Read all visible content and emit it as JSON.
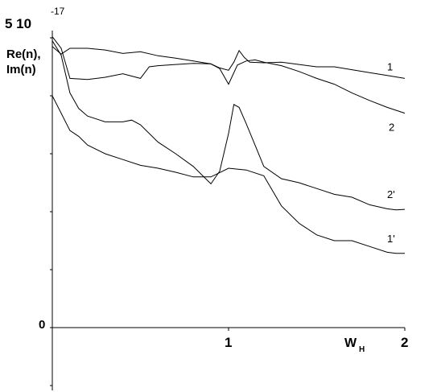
{
  "chart_data": {
    "type": "line",
    "title": "",
    "ylabel": "Re(n),\nIm(n)",
    "xlabel": "W_H",
    "y_scale_label": {
      "mantissa": "5 10",
      "exponent": "-17"
    },
    "x_ticks": [
      {
        "value": 1,
        "label": "1"
      },
      {
        "value": 2,
        "label": "2"
      }
    ],
    "y_ticks": [
      {
        "value": 0,
        "label": "0"
      }
    ],
    "xlim": [
      0,
      2
    ],
    "ylim": [
      0,
      5
    ],
    "grid": false,
    "series": [
      {
        "name": "1",
        "x": [
          0,
          0.05,
          0.1,
          0.2,
          0.3,
          0.4,
          0.5,
          0.6,
          0.7,
          0.8,
          0.9,
          0.95,
          1.0,
          1.03,
          1.06,
          1.09,
          1.12,
          1.2,
          1.3,
          1.4,
          1.5,
          1.6,
          1.7,
          1.8,
          1.9,
          2.0
        ],
        "y": [
          4.85,
          4.72,
          4.82,
          4.82,
          4.79,
          4.73,
          4.76,
          4.69,
          4.65,
          4.6,
          4.55,
          4.48,
          4.44,
          4.58,
          4.78,
          4.66,
          4.58,
          4.57,
          4.58,
          4.54,
          4.5,
          4.5,
          4.45,
          4.4,
          4.35,
          4.3
        ]
      },
      {
        "name": "2",
        "x": [
          0,
          0.05,
          0.1,
          0.2,
          0.3,
          0.4,
          0.5,
          0.55,
          0.6,
          0.7,
          0.8,
          0.9,
          0.95,
          1.0,
          1.05,
          1.1,
          1.15,
          1.2,
          1.3,
          1.4,
          1.5,
          1.6,
          1.7,
          1.8,
          1.9,
          2.0
        ],
        "y": [
          5.02,
          4.82,
          4.3,
          4.28,
          4.32,
          4.38,
          4.3,
          4.5,
          4.52,
          4.54,
          4.56,
          4.55,
          4.47,
          4.2,
          4.53,
          4.6,
          4.62,
          4.58,
          4.52,
          4.42,
          4.3,
          4.2,
          4.05,
          3.92,
          3.8,
          3.7
        ]
      },
      {
        "name": "2'",
        "x": [
          0,
          0.05,
          0.1,
          0.15,
          0.2,
          0.3,
          0.4,
          0.45,
          0.5,
          0.6,
          0.7,
          0.8,
          0.9,
          0.95,
          1.0,
          1.03,
          1.06,
          1.1,
          1.15,
          1.2,
          1.3,
          1.4,
          1.5,
          1.6,
          1.7,
          1.8,
          1.9,
          1.95,
          2.0
        ],
        "y": [
          4.95,
          4.7,
          4.05,
          3.78,
          3.65,
          3.55,
          3.55,
          3.58,
          3.5,
          3.2,
          3.0,
          2.78,
          2.48,
          2.7,
          3.35,
          3.85,
          3.8,
          3.52,
          3.15,
          2.78,
          2.57,
          2.5,
          2.4,
          2.3,
          2.25,
          2.12,
          2.05,
          2.03,
          2.04
        ]
      },
      {
        "name": "1'",
        "x": [
          0,
          0.05,
          0.1,
          0.15,
          0.2,
          0.3,
          0.4,
          0.5,
          0.6,
          0.7,
          0.8,
          0.9,
          1.0,
          1.1,
          1.2,
          1.3,
          1.4,
          1.5,
          1.6,
          1.7,
          1.8,
          1.9,
          1.95,
          2.0
        ],
        "y": [
          4.0,
          3.7,
          3.4,
          3.3,
          3.15,
          3.0,
          2.9,
          2.8,
          2.75,
          2.68,
          2.6,
          2.6,
          2.75,
          2.72,
          2.62,
          2.1,
          1.8,
          1.6,
          1.5,
          1.5,
          1.4,
          1.3,
          1.28,
          1.28
        ]
      }
    ]
  }
}
